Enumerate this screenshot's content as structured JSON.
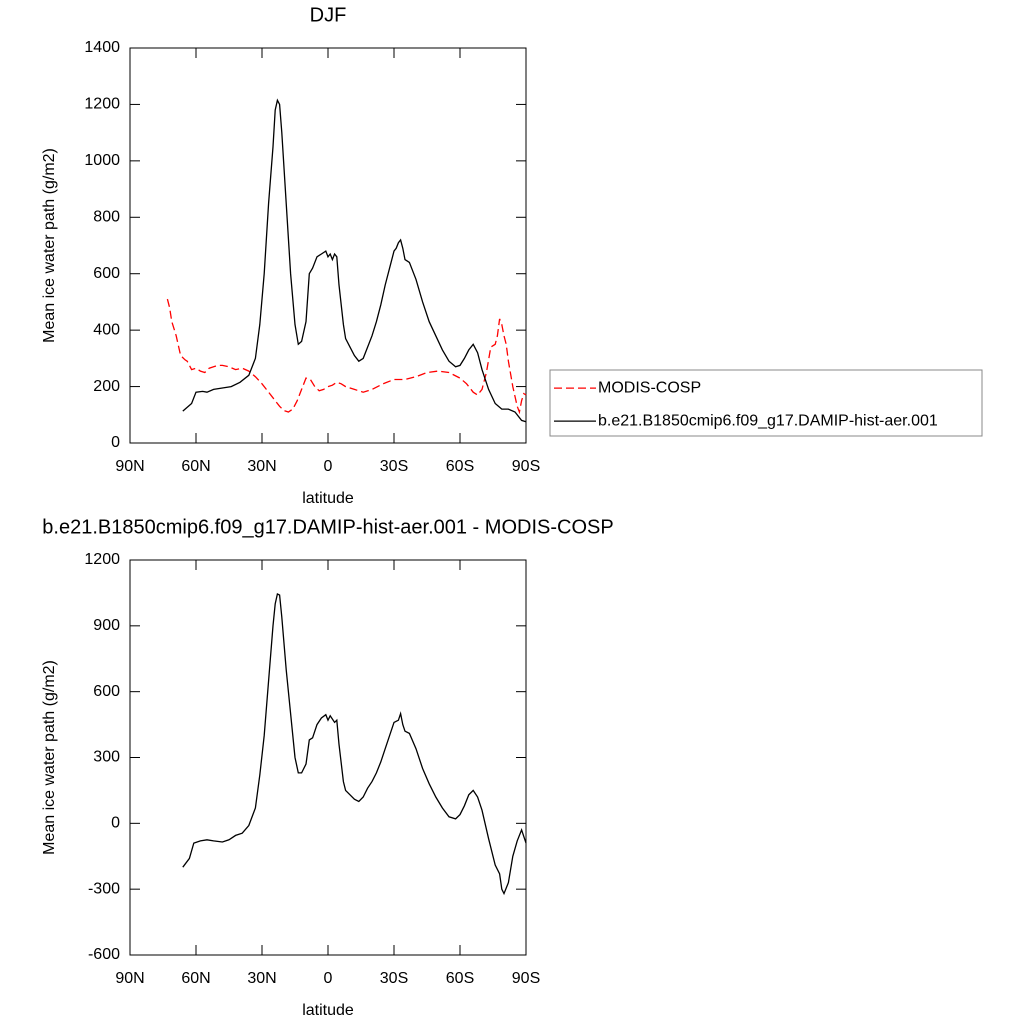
{
  "chart_data": [
    {
      "type": "line",
      "title": "DJF",
      "ylabel": "Mean ice water path (g/m2)",
      "xlabel": "latitude",
      "xlim": [
        90,
        -90
      ],
      "xticks": [
        {
          "value": 90,
          "label": "90N"
        },
        {
          "value": 60,
          "label": "60N"
        },
        {
          "value": 30,
          "label": "30N"
        },
        0,
        {
          "value": -30,
          "label": "30S"
        },
        {
          "value": -60,
          "label": "60S"
        },
        {
          "value": -90,
          "label": "90S"
        }
      ],
      "ylim": [
        0,
        1400
      ],
      "yticks": [
        0,
        200,
        400,
        600,
        800,
        1000,
        1200,
        1400
      ],
      "legend": "right",
      "series": [
        {
          "name": "MODIS-COSP",
          "color": "#ff0000",
          "line_style": "dashed",
          "x": [
            73,
            72,
            71,
            69,
            67,
            65,
            64,
            62,
            60,
            58,
            56,
            54,
            52,
            50,
            48,
            45,
            42,
            39,
            36,
            33,
            30,
            27,
            24,
            22,
            20,
            18,
            16,
            14,
            12,
            10,
            8,
            6,
            4,
            2,
            0,
            -2,
            -4,
            -6,
            -8,
            -12,
            -16,
            -20,
            -25,
            -30,
            -35,
            -40,
            -45,
            -50,
            -55,
            -60,
            -63,
            -66,
            -68,
            -70,
            -72,
            -74,
            -76,
            -77,
            -78,
            -79,
            -80,
            -81,
            -82,
            -84,
            -86,
            -87,
            -88,
            -89,
            -90
          ],
          "values": [
            510,
            480,
            430,
            380,
            310,
            295,
            290,
            260,
            265,
            255,
            250,
            265,
            270,
            275,
            275,
            270,
            260,
            265,
            255,
            235,
            210,
            180,
            150,
            130,
            115,
            110,
            120,
            150,
            190,
            230,
            225,
            200,
            185,
            190,
            200,
            205,
            215,
            210,
            200,
            190,
            180,
            190,
            210,
            225,
            225,
            235,
            250,
            255,
            250,
            230,
            210,
            180,
            170,
            190,
            250,
            340,
            350,
            380,
            440,
            420,
            380,
            350,
            290,
            200,
            130,
            110,
            150,
            175,
            170
          ]
        },
        {
          "name": "b.e21.B1850cmip6.f09_g17.DAMIP-hist-aer.001",
          "color": "#000000",
          "line_style": "solid",
          "x": [
            66,
            62,
            60,
            57,
            55,
            52,
            48,
            44,
            40,
            36,
            33,
            31,
            29,
            27,
            25,
            24,
            23,
            22,
            21,
            19,
            17,
            15,
            13.5,
            12,
            10,
            8.5,
            7,
            5,
            3,
            1,
            0,
            -1,
            -2,
            -3,
            -4,
            -5,
            -7,
            -8,
            -10,
            -12,
            -14,
            -16,
            -18,
            -20,
            -22,
            -24,
            -26,
            -28,
            -30,
            -31,
            -32,
            -33,
            -34,
            -35,
            -37,
            -40,
            -43,
            -46,
            -49,
            -52,
            -55,
            -58,
            -60,
            -62,
            -64,
            -66,
            -68,
            -70,
            -73,
            -76,
            -79,
            -82,
            -85,
            -88,
            -90
          ],
          "values": [
            113,
            140,
            180,
            183,
            180,
            190,
            195,
            200,
            215,
            240,
            300,
            420,
            600,
            850,
            1050,
            1180,
            1215,
            1200,
            1100,
            850,
            600,
            420,
            350,
            360,
            430,
            600,
            620,
            660,
            670,
            680,
            660,
            670,
            650,
            670,
            660,
            560,
            420,
            370,
            340,
            310,
            290,
            300,
            340,
            380,
            430,
            490,
            560,
            620,
            680,
            690,
            710,
            720,
            690,
            650,
            640,
            580,
            500,
            430,
            380,
            330,
            290,
            270,
            275,
            300,
            330,
            350,
            320,
            260,
            190,
            140,
            120,
            120,
            110,
            80,
            75
          ]
        }
      ]
    },
    {
      "type": "line",
      "title": "b.e21.B1850cmip6.f09_g17.DAMIP-hist-aer.001 - MODIS-COSP",
      "ylabel": "Mean ice water path (g/m2)",
      "xlabel": "latitude",
      "xlim": [
        90,
        -90
      ],
      "xticks": [
        {
          "value": 90,
          "label": "90N"
        },
        {
          "value": 60,
          "label": "60N"
        },
        {
          "value": 30,
          "label": "30N"
        },
        0,
        {
          "value": -30,
          "label": "30S"
        },
        {
          "value": -60,
          "label": "60S"
        },
        {
          "value": -90,
          "label": "90S"
        }
      ],
      "ylim": [
        -600,
        1200
      ],
      "yticks": [
        -600,
        -300,
        0,
        300,
        600,
        900,
        1200
      ],
      "series": [
        {
          "color": "#000000",
          "line_style": "solid",
          "x": [
            66,
            63,
            61,
            58,
            55,
            52,
            48,
            45,
            42,
            39,
            36,
            33,
            31,
            29,
            27,
            25,
            24,
            23,
            22,
            21,
            19,
            17,
            15,
            13.5,
            12,
            10,
            8.5,
            7,
            5,
            3,
            1,
            0,
            -1,
            -3,
            -4,
            -5,
            -7,
            -8,
            -10,
            -12,
            -14,
            -16,
            -18,
            -20,
            -22,
            -24,
            -26,
            -28,
            -30,
            -32,
            -33,
            -34,
            -35,
            -37,
            -40,
            -43,
            -46,
            -49,
            -52,
            -55,
            -58,
            -60,
            -62,
            -64,
            -66,
            -68,
            -70,
            -73,
            -76,
            -78,
            -79,
            -80,
            -82,
            -84,
            -86,
            -88,
            -90
          ],
          "values": [
            -200,
            -160,
            -90,
            -80,
            -75,
            -80,
            -85,
            -75,
            -55,
            -45,
            -10,
            70,
            220,
            400,
            650,
            900,
            1000,
            1045,
            1040,
            940,
            700,
            500,
            300,
            230,
            230,
            270,
            380,
            390,
            450,
            480,
            495,
            470,
            490,
            460,
            470,
            360,
            190,
            150,
            130,
            110,
            100,
            120,
            160,
            190,
            230,
            280,
            340,
            400,
            460,
            470,
            500,
            450,
            420,
            410,
            340,
            250,
            180,
            120,
            70,
            30,
            20,
            40,
            80,
            130,
            150,
            120,
            60,
            -70,
            -190,
            -230,
            -300,
            -320,
            -270,
            -150,
            -80,
            -30,
            -90
          ]
        }
      ]
    }
  ]
}
